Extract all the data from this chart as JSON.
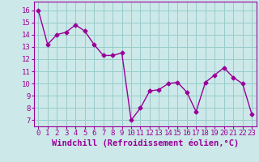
{
  "x": [
    0,
    1,
    2,
    3,
    4,
    5,
    6,
    7,
    8,
    9,
    10,
    11,
    12,
    13,
    14,
    15,
    16,
    17,
    18,
    19,
    20,
    21,
    22,
    23
  ],
  "y": [
    16.0,
    13.2,
    14.0,
    14.2,
    14.8,
    14.3,
    13.2,
    12.3,
    12.3,
    12.5,
    7.0,
    8.0,
    9.4,
    9.5,
    10.0,
    10.1,
    9.3,
    7.7,
    10.1,
    10.7,
    11.3,
    10.5,
    10.0,
    7.5
  ],
  "line_color": "#990099",
  "marker": "D",
  "marker_size": 2.5,
  "bg_color": "#cce8e8",
  "grid_color": "#99cccc",
  "xlabel": "Windchill (Refroidissement éolien,°C)",
  "xlabel_color": "#990099",
  "tick_color": "#990099",
  "ylim": [
    6.5,
    16.7
  ],
  "yticks": [
    7,
    8,
    9,
    10,
    11,
    12,
    13,
    14,
    15,
    16
  ],
  "xticks": [
    0,
    1,
    2,
    3,
    4,
    5,
    6,
    7,
    8,
    9,
    10,
    11,
    12,
    13,
    14,
    15,
    16,
    17,
    18,
    19,
    20,
    21,
    22,
    23
  ],
  "tick_fontsize": 6.5,
  "xlabel_fontsize": 7.5,
  "line_width": 1.0
}
